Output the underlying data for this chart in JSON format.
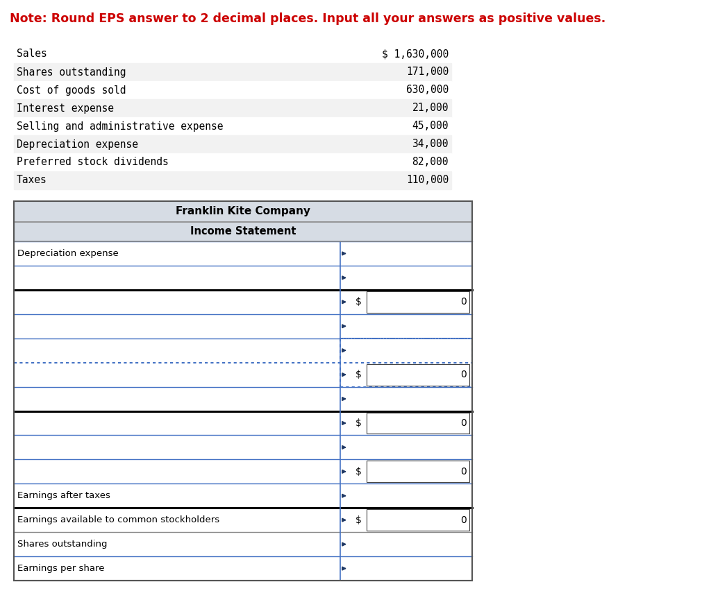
{
  "note_text": "Note: Round EPS answer to 2 decimal places. Input all your answers as positive values.",
  "note_color": "#cc0000",
  "note_fontsize": 12.5,
  "given_data": [
    [
      "Sales",
      "$ 1,630,000"
    ],
    [
      "Shares outstanding",
      "171,000"
    ],
    [
      "Cost of goods sold",
      "630,000"
    ],
    [
      "Interest expense",
      "21,000"
    ],
    [
      "Selling and administrative expense",
      "45,000"
    ],
    [
      "Depreciation expense",
      "34,000"
    ],
    [
      "Preferred stock dividends",
      "82,000"
    ],
    [
      "Taxes",
      "110,000"
    ]
  ],
  "table_title1": "Franklin Kite Company",
  "table_title2": "Income Statement",
  "table_header_bg": "#d6dce4",
  "header_border": "#888888",
  "blue_line": "#4472c4",
  "black_line": "#000000",
  "dotted_color": "#4472c4",
  "arrow_color": "#1f3864",
  "bg_color": "#ffffff",
  "rows": [
    {
      "label": "Depreciation expense",
      "dollar": false,
      "border_top": "blue_solid"
    },
    {
      "label": "",
      "dollar": false,
      "border_top": "blue_solid"
    },
    {
      "label": "",
      "dollar": true,
      "border_top": "black_double"
    },
    {
      "label": "",
      "dollar": false,
      "border_top": "blue_solid"
    },
    {
      "label": "",
      "dollar": false,
      "border_top": "blue_dotted_right"
    },
    {
      "label": "",
      "dollar": true,
      "border_top": "blue_dotted_full"
    },
    {
      "label": "",
      "dollar": false,
      "border_top": "blue_solid"
    },
    {
      "label": "",
      "dollar": true,
      "border_top": "black_double"
    },
    {
      "label": "",
      "dollar": false,
      "border_top": "blue_solid"
    },
    {
      "label": "",
      "dollar": true,
      "border_top": "blue_solid"
    },
    {
      "label": "Earnings after taxes",
      "dollar": false,
      "border_top": "blue_solid"
    },
    {
      "label": "Earnings available to common stockholders",
      "dollar": true,
      "border_top": "black_double"
    },
    {
      "label": "Shares outstanding",
      "dollar": false,
      "border_top": "gray_solid"
    },
    {
      "label": "Earnings per share",
      "dollar": false,
      "border_top": "blue_solid"
    }
  ]
}
